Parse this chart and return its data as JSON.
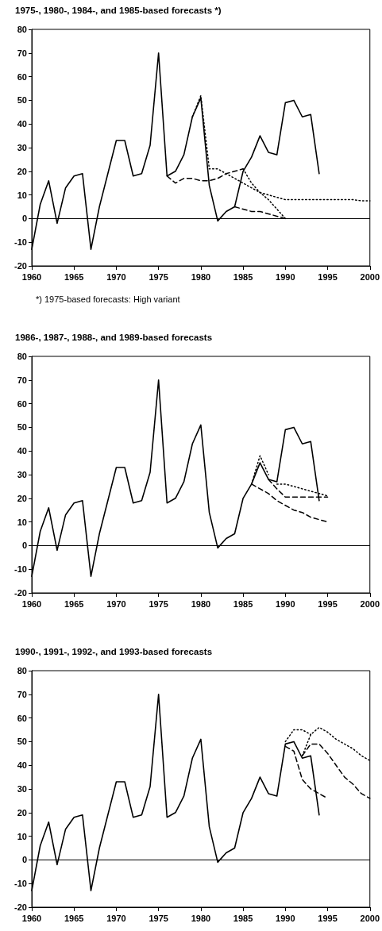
{
  "chart_data": [
    {
      "type": "line",
      "title": "1975-, 1980-, 1984-, and 1985-based forecasts *)",
      "annotations": [
        "*) 1975-based forecasts: High variant"
      ],
      "xlim": [
        1960,
        2000
      ],
      "xticks": [
        1960,
        1965,
        1970,
        1975,
        1980,
        1985,
        1990,
        1995,
        2000
      ],
      "ylim": [
        -20,
        80
      ],
      "yticks": [
        -20,
        -10,
        0,
        10,
        20,
        30,
        40,
        50,
        60,
        70,
        80
      ],
      "grid": false,
      "marker": "none",
      "ref_lines": [
        {
          "axis": "y",
          "value": 0,
          "color": "#000000"
        }
      ],
      "series": [
        {
          "color": "#000000",
          "line_style": "solid",
          "x": [
            1960,
            1961,
            1962,
            1963,
            1964,
            1965,
            1966,
            1967,
            1968,
            1969,
            1970,
            1971,
            1972,
            1973,
            1974,
            1975,
            1976,
            1977,
            1978,
            1979,
            1980,
            1981,
            1982,
            1983,
            1984,
            1985,
            1986,
            1987,
            1988,
            1989,
            1990,
            1991,
            1992,
            1993,
            1994
          ],
          "values": [
            -13,
            6,
            16,
            -2,
            13,
            18,
            19,
            -13,
            5,
            19,
            33,
            33,
            18,
            19,
            31,
            70,
            18,
            20,
            27,
            43,
            51,
            14,
            -1,
            3,
            5,
            20,
            26,
            35,
            28,
            27,
            49,
            50,
            43,
            44,
            19
          ]
        },
        {
          "color": "#000000",
          "line_style": "dashed",
          "x": [
            1976,
            1977,
            1978,
            1979,
            1980,
            1981,
            1982,
            1983,
            1984,
            1985
          ],
          "values": [
            18,
            15,
            17,
            17,
            16,
            16,
            17,
            19,
            20,
            21
          ]
        },
        {
          "color": "#000000",
          "line_style": "dotted",
          "x": [
            1979,
            1980,
            1981,
            1982,
            1983,
            1984,
            1985,
            1986,
            1987,
            1988,
            1989,
            1990,
            1991,
            1992,
            1993,
            1994,
            1995,
            1996,
            1997,
            1998,
            1999,
            2000
          ],
          "values": [
            43,
            52,
            21,
            21,
            19,
            17,
            15,
            13,
            11,
            10,
            9,
            8,
            8,
            8,
            8,
            8,
            8,
            8,
            8,
            8,
            7.5,
            7.5
          ]
        },
        {
          "color": "#000000",
          "line_style": "dashed",
          "x": [
            1984,
            1985,
            1986,
            1987,
            1988,
            1989,
            1990
          ],
          "values": [
            5,
            4,
            3,
            3,
            2,
            1,
            0
          ]
        },
        {
          "color": "#000000",
          "line_style": "dotted",
          "x": [
            1985,
            1986,
            1987,
            1988,
            1989,
            1990
          ],
          "values": [
            21,
            15,
            11,
            8,
            4,
            0
          ]
        }
      ]
    },
    {
      "type": "line",
      "title": "1986-, 1987-, 1988-, and 1989-based forecasts",
      "xlim": [
        1960,
        2000
      ],
      "xticks": [
        1960,
        1965,
        1970,
        1975,
        1980,
        1985,
        1990,
        1995,
        2000
      ],
      "ylim": [
        -20,
        80
      ],
      "yticks": [
        -20,
        -10,
        0,
        10,
        20,
        30,
        40,
        50,
        60,
        70,
        80
      ],
      "grid": false,
      "marker": "none",
      "ref_lines": [
        {
          "axis": "y",
          "value": 0,
          "color": "#000000"
        }
      ],
      "series": [
        {
          "color": "#000000",
          "line_style": "solid",
          "x": [
            1960,
            1961,
            1962,
            1963,
            1964,
            1965,
            1966,
            1967,
            1968,
            1969,
            1970,
            1971,
            1972,
            1973,
            1974,
            1975,
            1976,
            1977,
            1978,
            1979,
            1980,
            1981,
            1982,
            1983,
            1984,
            1985,
            1986,
            1987,
            1988,
            1989,
            1990,
            1991,
            1992,
            1993,
            1994
          ],
          "values": [
            -13,
            6,
            16,
            -2,
            13,
            18,
            19,
            -13,
            5,
            19,
            33,
            33,
            18,
            19,
            31,
            70,
            18,
            20,
            27,
            43,
            51,
            14,
            -1,
            3,
            5,
            20,
            26,
            35,
            28,
            27,
            49,
            50,
            43,
            44,
            19
          ]
        },
        {
          "color": "#000000",
          "line_style": "dashed",
          "x": [
            1986,
            1987,
            1988,
            1989,
            1990,
            1991,
            1992,
            1993,
            1994,
            1995
          ],
          "values": [
            26,
            24,
            22,
            19,
            17,
            15,
            14,
            12,
            11,
            10
          ]
        },
        {
          "color": "#000000",
          "line_style": "dotted",
          "x": [
            1986,
            1987,
            1988
          ],
          "values": [
            26,
            38,
            30
          ]
        },
        {
          "color": "#000000",
          "line_style": "dashed",
          "x": [
            1988,
            1989,
            1990,
            1991,
            1992,
            1993,
            1994,
            1995
          ],
          "values": [
            28,
            24,
            20.5,
            20.5,
            20.5,
            20.5,
            20.5,
            20.5
          ]
        },
        {
          "color": "#000000",
          "line_style": "dotted",
          "x": [
            1989,
            1990,
            1991,
            1992,
            1993,
            1994,
            1995
          ],
          "values": [
            26,
            26,
            25,
            24,
            23,
            22,
            21
          ]
        }
      ]
    },
    {
      "type": "line",
      "title": "1990-, 1991-, 1992-, and 1993-based forecasts",
      "xlim": [
        1960,
        2000
      ],
      "xticks": [
        1960,
        1965,
        1970,
        1975,
        1980,
        1985,
        1990,
        1995,
        2000
      ],
      "ylim": [
        -20,
        80
      ],
      "yticks": [
        -20,
        -10,
        0,
        10,
        20,
        30,
        40,
        50,
        60,
        70,
        80
      ],
      "grid": false,
      "marker": "none",
      "ref_lines": [
        {
          "axis": "y",
          "value": 0,
          "color": "#000000"
        }
      ],
      "series": [
        {
          "color": "#000000",
          "line_style": "solid",
          "x": [
            1960,
            1961,
            1962,
            1963,
            1964,
            1965,
            1966,
            1967,
            1968,
            1969,
            1970,
            1971,
            1972,
            1973,
            1974,
            1975,
            1976,
            1977,
            1978,
            1979,
            1980,
            1981,
            1982,
            1983,
            1984,
            1985,
            1986,
            1987,
            1988,
            1989,
            1990,
            1991,
            1992,
            1993,
            1994
          ],
          "values": [
            -13,
            6,
            16,
            -2,
            13,
            18,
            19,
            -13,
            5,
            19,
            33,
            33,
            18,
            19,
            31,
            70,
            18,
            20,
            27,
            43,
            51,
            14,
            -1,
            3,
            5,
            20,
            26,
            35,
            28,
            27,
            49,
            50,
            43,
            44,
            19
          ]
        },
        {
          "color": "#000000",
          "line_style": "dotted",
          "x": [
            1990,
            1991,
            1992,
            1993
          ],
          "values": [
            50,
            55,
            55,
            53
          ]
        },
        {
          "color": "#000000",
          "line_style": "dashed",
          "x": [
            1990,
            1991,
            1992,
            1993,
            1994,
            1995
          ],
          "values": [
            48,
            46,
            34,
            30,
            28,
            26
          ]
        },
        {
          "color": "#000000",
          "line_style": "dashed",
          "x": [
            1992,
            1993,
            1994,
            1995,
            1996,
            1997,
            1998,
            1999,
            2000
          ],
          "values": [
            44,
            49,
            49,
            45,
            40,
            35,
            32,
            28,
            26
          ]
        },
        {
          "color": "#000000",
          "line_style": "dotted",
          "x": [
            1992,
            1993,
            1994,
            1995,
            1996,
            1997,
            1998,
            1999,
            2000
          ],
          "values": [
            44,
            53,
            56,
            54,
            51,
            49,
            47,
            44,
            42
          ]
        }
      ]
    }
  ]
}
